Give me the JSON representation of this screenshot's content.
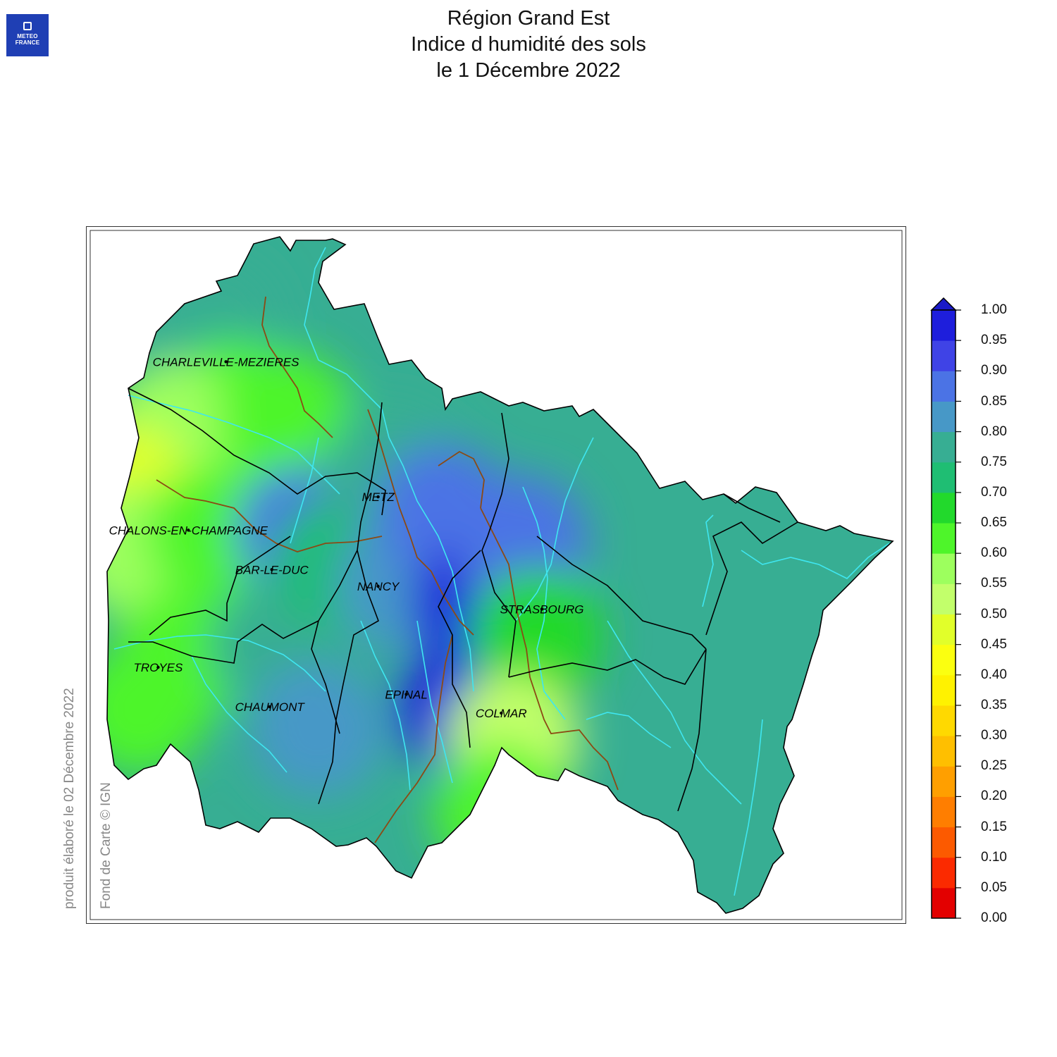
{
  "header": {
    "logo_line1": "METEO",
    "logo_line2": "FRANCE",
    "title_line1": "Région Grand Est",
    "title_line2": "Indice d humidité des sols",
    "title_line3": "le 1 Décembre 2022"
  },
  "credits": {
    "produced": "produit élaboré le 02 Décembre 2022",
    "basemap": "Fond de Carte © IGN"
  },
  "cities": [
    {
      "name": "CHARLEVILLE-MEZIERES",
      "lon": 4.72,
      "lat": 49.77
    },
    {
      "name": "METZ",
      "lon": 6.18,
      "lat": 49.12
    },
    {
      "name": "CHALONS-EN-CHAMPAGNE",
      "lon": 4.36,
      "lat": 48.96
    },
    {
      "name": "BAR-LE-DUC",
      "lon": 5.16,
      "lat": 48.77
    },
    {
      "name": "NANCY",
      "lon": 6.18,
      "lat": 48.69
    },
    {
      "name": "STRASBOURG",
      "lon": 7.75,
      "lat": 48.58
    },
    {
      "name": "TROYES",
      "lon": 4.07,
      "lat": 48.3
    },
    {
      "name": "CHAUMONT",
      "lon": 5.14,
      "lat": 48.11
    },
    {
      "name": "EPINAL",
      "lon": 6.45,
      "lat": 48.17
    },
    {
      "name": "COLMAR",
      "lon": 7.36,
      "lat": 48.08
    }
  ],
  "legend": {
    "labels": [
      "0.00",
      "0.05",
      "0.10",
      "0.15",
      "0.20",
      "0.25",
      "0.30",
      "0.35",
      "0.40",
      "0.45",
      "0.50",
      "0.55",
      "0.60",
      "0.65",
      "0.70",
      "0.75",
      "0.80",
      "0.85",
      "0.90",
      "0.95",
      "1.00"
    ],
    "colors": [
      "#e30000",
      "#fb2a00",
      "#fc5a00",
      "#ff7e00",
      "#ff9f00",
      "#ffbf00",
      "#ffd900",
      "#fff200",
      "#fbff10",
      "#e1ff2a",
      "#c2ff6b",
      "#9dff5e",
      "#4ef52a",
      "#22d92c",
      "#1fbe73",
      "#37ae93",
      "#4798c7",
      "#4b73e5",
      "#3f43e6",
      "#1e1edc"
    ],
    "extend_color": "#1a1ac8"
  },
  "moisture_zones": [
    {
      "lon": 4.6,
      "lat": 49.95,
      "value": 0.78
    },
    {
      "lon": 4.8,
      "lat": 49.55,
      "value": 0.62
    },
    {
      "lon": 4.2,
      "lat": 49.45,
      "value": 0.56
    },
    {
      "lon": 3.75,
      "lat": 49.15,
      "value": 0.49
    },
    {
      "lon": 3.85,
      "lat": 48.85,
      "value": 0.56
    },
    {
      "lon": 4.6,
      "lat": 48.95,
      "value": 0.62
    },
    {
      "lon": 4.3,
      "lat": 48.35,
      "value": 0.62
    },
    {
      "lon": 3.9,
      "lat": 48.1,
      "value": 0.64
    },
    {
      "lon": 5.3,
      "lat": 49.5,
      "value": 0.6
    },
    {
      "lon": 5.45,
      "lat": 48.95,
      "value": 0.86
    },
    {
      "lon": 5.2,
      "lat": 48.4,
      "value": 0.79
    },
    {
      "lon": 5.6,
      "lat": 48.0,
      "value": 0.8
    },
    {
      "lon": 5.8,
      "lat": 48.8,
      "value": 0.7
    },
    {
      "lon": 6.3,
      "lat": 49.25,
      "value": 0.78
    },
    {
      "lon": 6.4,
      "lat": 48.7,
      "value": 0.82
    },
    {
      "lon": 6.8,
      "lat": 49.05,
      "value": 0.85
    },
    {
      "lon": 7.0,
      "lat": 48.1,
      "value": 0.98
    },
    {
      "lon": 7.15,
      "lat": 48.6,
      "value": 0.97
    },
    {
      "lon": 7.55,
      "lat": 48.9,
      "value": 0.86
    },
    {
      "lon": 7.7,
      "lat": 48.45,
      "value": 0.68
    },
    {
      "lon": 7.48,
      "lat": 47.95,
      "value": 0.5
    },
    {
      "lon": 7.35,
      "lat": 47.6,
      "value": 0.64
    }
  ]
}
